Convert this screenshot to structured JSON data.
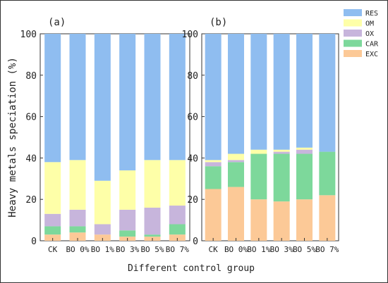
{
  "chart_data": [
    {
      "panel_label": "(a)",
      "type": "bar",
      "stacked": true,
      "categories": [
        "CK",
        "BO 0%",
        "BO 1%",
        "BO 3%",
        "BO 5%",
        "BO 7%"
      ],
      "series": [
        {
          "name": "EXC",
          "color": "#fcc997",
          "values": [
            3,
            4,
            3,
            2,
            2,
            3
          ]
        },
        {
          "name": "CAR",
          "color": "#7dd89b",
          "values": [
            4,
            3,
            0,
            3,
            1,
            5
          ]
        },
        {
          "name": "OX",
          "color": "#c7b5dc",
          "values": [
            6,
            8,
            5,
            10,
            13,
            9
          ]
        },
        {
          "name": "OM",
          "color": "#feffa8",
          "values": [
            25,
            24,
            21,
            19,
            23,
            22
          ]
        },
        {
          "name": "RES",
          "color": "#8fbdf0",
          "values": [
            62,
            61,
            71,
            66,
            61,
            61
          ]
        }
      ],
      "ylim": [
        0,
        100
      ],
      "yticks": [
        0,
        20,
        40,
        60,
        80,
        100
      ],
      "ylabel": "Heavy metals speciation (%)",
      "grid": false
    },
    {
      "panel_label": "(b)",
      "type": "bar",
      "stacked": true,
      "categories": [
        "CK",
        "BO 0%",
        "BO 1%",
        "BO 3%",
        "BO 5%",
        "BO 7%"
      ],
      "series": [
        {
          "name": "EXC",
          "color": "#fcc997",
          "values": [
            25,
            26,
            20,
            19,
            20,
            22
          ]
        },
        {
          "name": "CAR",
          "color": "#7dd89b",
          "values": [
            11,
            12,
            22,
            23,
            22,
            21
          ]
        },
        {
          "name": "OX",
          "color": "#c7b5dc",
          "values": [
            2,
            1,
            0,
            1,
            2,
            0
          ]
        },
        {
          "name": "OM",
          "color": "#feffa8",
          "values": [
            1,
            3,
            2,
            1,
            1,
            0
          ]
        },
        {
          "name": "RES",
          "color": "#8fbdf0",
          "values": [
            61,
            58,
            56,
            56,
            55,
            57
          ]
        }
      ],
      "ylim": [
        0,
        100
      ],
      "yticks": [
        0,
        20,
        40,
        60,
        80,
        100
      ],
      "grid": false
    }
  ],
  "xlabel": "Different control group",
  "legend": {
    "placement": "top-right",
    "entries": [
      {
        "name": "RES",
        "color": "#8fbdf0"
      },
      {
        "name": "OM",
        "color": "#feffa8"
      },
      {
        "name": "OX",
        "color": "#c7b5dc"
      },
      {
        "name": "CAR",
        "color": "#7dd89b"
      },
      {
        "name": "EXC",
        "color": "#fcc997"
      }
    ]
  }
}
